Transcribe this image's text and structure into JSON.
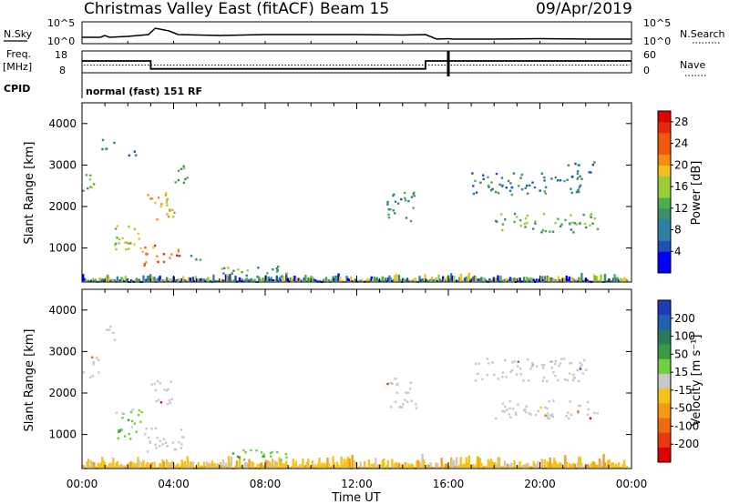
{
  "header": {
    "title": "Christmas Valley East (fitACF)",
    "beam": "Beam 15",
    "date": "09/Apr/2019"
  },
  "colors": {
    "power_scale": [
      "#0000ff",
      "#1f50b4",
      "#2e7fa6",
      "#3d8c6a",
      "#4caf4c",
      "#9ccc3c",
      "#f2c21b",
      "#f48b13",
      "#ef5a0e",
      "#e52a0b",
      "#e00000"
    ],
    "velocity_scale": [
      "#1e3cb4",
      "#1f60b0",
      "#2c7a5c",
      "#3a9a44",
      "#6fcf3c",
      "#c8c8c8",
      "#f5c318",
      "#f59a14",
      "#f06a10",
      "#e83a0c",
      "#e00000"
    ],
    "noise": "#c8c8c8"
  },
  "chart_data": [
    {
      "type": "line",
      "title": "",
      "ylabel": "N.Sky",
      "y2label": "N.Search",
      "yticks": [
        "10^5",
        "10^0"
      ],
      "y2ticks": [
        "10^5",
        "10^0"
      ],
      "series": [
        {
          "x": [
            0,
            0.8,
            1.0,
            1.2,
            2.0,
            2.9,
            3.2,
            3.8,
            4.2,
            6,
            8,
            10,
            12,
            14,
            15,
            15.5,
            16,
            16.2,
            18,
            20,
            22,
            23,
            24
          ],
          "values": [
            0.5,
            0.5,
            0.7,
            0.5,
            0.6,
            0.8,
            1.5,
            1.2,
            0.8,
            0.7,
            0.8,
            0.8,
            0.8,
            0.75,
            0.8,
            0.3,
            0.35,
            0.3,
            0.3,
            0.35,
            0.3,
            0.3,
            0.3
          ]
        }
      ]
    },
    {
      "type": "line",
      "ylabel": "Freq. [MHz]",
      "y2label": "Nave",
      "yticks": [
        "18",
        "8"
      ],
      "y2ticks": [
        "60",
        "0"
      ],
      "series": [
        {
          "x": [
            0,
            3,
            3,
            15,
            15,
            24
          ],
          "values": [
            13.4,
            13.4,
            9.8,
            9.8,
            13.4,
            13.4
          ]
        }
      ],
      "nave_series": {
        "x": [
          0,
          24
        ],
        "values": [
          21,
          21
        ]
      },
      "marker_x": 16
    },
    {
      "type": "table",
      "ylabel": "CPID",
      "text": "normal (fast) 151 RF"
    },
    {
      "type": "heatmap",
      "ylabel": "Slant Range [km]",
      "ylim": [
        180,
        4500
      ],
      "yticks": [
        "1000",
        "2000",
        "3000",
        "4000"
      ],
      "colorbar_label": "Power [dB]",
      "colorbar_ticks": [
        "4",
        "8",
        "12",
        "16",
        "20",
        "24",
        "28"
      ],
      "colorbar_range": [
        0,
        30
      ],
      "patches": [
        {
          "t": [
            0.0,
            0.7
          ],
          "r": [
            2400,
            2850
          ],
          "v": 16
        },
        {
          "t": [
            0.8,
            1.4
          ],
          "r": [
            3300,
            3650
          ],
          "v": 10
        },
        {
          "t": [
            2.0,
            2.5
          ],
          "r": [
            3200,
            3400
          ],
          "v": 9
        },
        {
          "t": [
            1.3,
            2.6
          ],
          "r": [
            950,
            1600
          ],
          "v": 18
        },
        {
          "t": [
            2.6,
            4.2
          ],
          "r": [
            600,
            1100
          ],
          "v": 24
        },
        {
          "t": [
            4.2,
            5.2
          ],
          "r": [
            700,
            850
          ],
          "v": 8
        },
        {
          "t": [
            2.8,
            4.0
          ],
          "r": [
            1700,
            2400
          ],
          "v": 20
        },
        {
          "t": [
            3.9,
            4.8
          ],
          "r": [
            2600,
            3000
          ],
          "v": 12
        },
        {
          "t": [
            6.0,
            9.0
          ],
          "r": [
            320,
            580
          ],
          "v": 12
        },
        {
          "t": [
            13.3,
            14.6
          ],
          "r": [
            1650,
            2400
          ],
          "v": 10
        },
        {
          "t": [
            17.0,
            21.8
          ],
          "r": [
            2300,
            2850
          ],
          "v": 9
        },
        {
          "t": [
            18.0,
            22.5
          ],
          "r": [
            1400,
            1850
          ],
          "v": 13
        },
        {
          "t": [
            21.0,
            22.4
          ],
          "r": [
            2800,
            3100
          ],
          "v": 8
        }
      ],
      "ground_band": {
        "t": [
          0,
          23.8
        ],
        "r": [
          200,
          350
        ]
      }
    },
    {
      "type": "heatmap",
      "ylabel": "Slant Range [km]",
      "ylim": [
        180,
        4500
      ],
      "yticks": [
        "1000",
        "2000",
        "3000",
        "4000"
      ],
      "xlabel": "Time UT",
      "xlim": [
        0,
        24
      ],
      "xticks": [
        "00:00",
        "04:00",
        "08:00",
        "12:00",
        "16:00",
        "20:00",
        "00:00"
      ],
      "colorbar_label": "Velocity [m s⁻¹]",
      "colorbar_ticks": [
        "200",
        "100",
        "50",
        "15",
        "-15",
        "-50",
        "-100",
        "-200"
      ],
      "patches": [
        {
          "t": [
            0.0,
            0.7
          ],
          "r": [
            2400,
            2900
          ],
          "v": "noise"
        },
        {
          "t": [
            0.8,
            1.4
          ],
          "r": [
            3300,
            3650
          ],
          "v": "noise"
        },
        {
          "t": [
            1.4,
            2.6
          ],
          "r": [
            900,
            1700
          ],
          "v": "green"
        },
        {
          "t": [
            2.7,
            4.4
          ],
          "r": [
            600,
            1200
          ],
          "v": "noise"
        },
        {
          "t": [
            3.0,
            4.0
          ],
          "r": [
            1700,
            2350
          ],
          "v": "noise"
        },
        {
          "t": [
            6.5,
            9.0
          ],
          "r": [
            350,
            650
          ],
          "v": "green"
        },
        {
          "t": [
            13.3,
            14.6
          ],
          "r": [
            1650,
            2400
          ],
          "v": "noise"
        },
        {
          "t": [
            17.0,
            22.0
          ],
          "r": [
            2300,
            2850
          ],
          "v": "noise"
        },
        {
          "t": [
            18.0,
            22.5
          ],
          "r": [
            1400,
            1850
          ],
          "v": "noise"
        }
      ],
      "ground_band": {
        "t": [
          0,
          23.8
        ],
        "r": [
          200,
          450
        ],
        "v": "yellow"
      }
    }
  ],
  "labels": {
    "nsky": "N.Sky",
    "nsearch": "N.Search",
    "nsky_top": "10^5",
    "nsky_bot": "10^0",
    "nsearch_top": "10^5",
    "nsearch_bot": "10^0",
    "freq": "Freq.",
    "mhz": "[MHz]",
    "freq_top": "18",
    "freq_bot": "8",
    "nave": "Nave",
    "nave_top": "60",
    "nave_bot": "0",
    "cpid": "CPID",
    "cpid_text": "normal (fast) 151 RF",
    "slant": "Slant Range [km]",
    "time_ut": "Time UT",
    "power": "Power [dB]",
    "velocity": "Velocity [m s⁻¹]"
  }
}
